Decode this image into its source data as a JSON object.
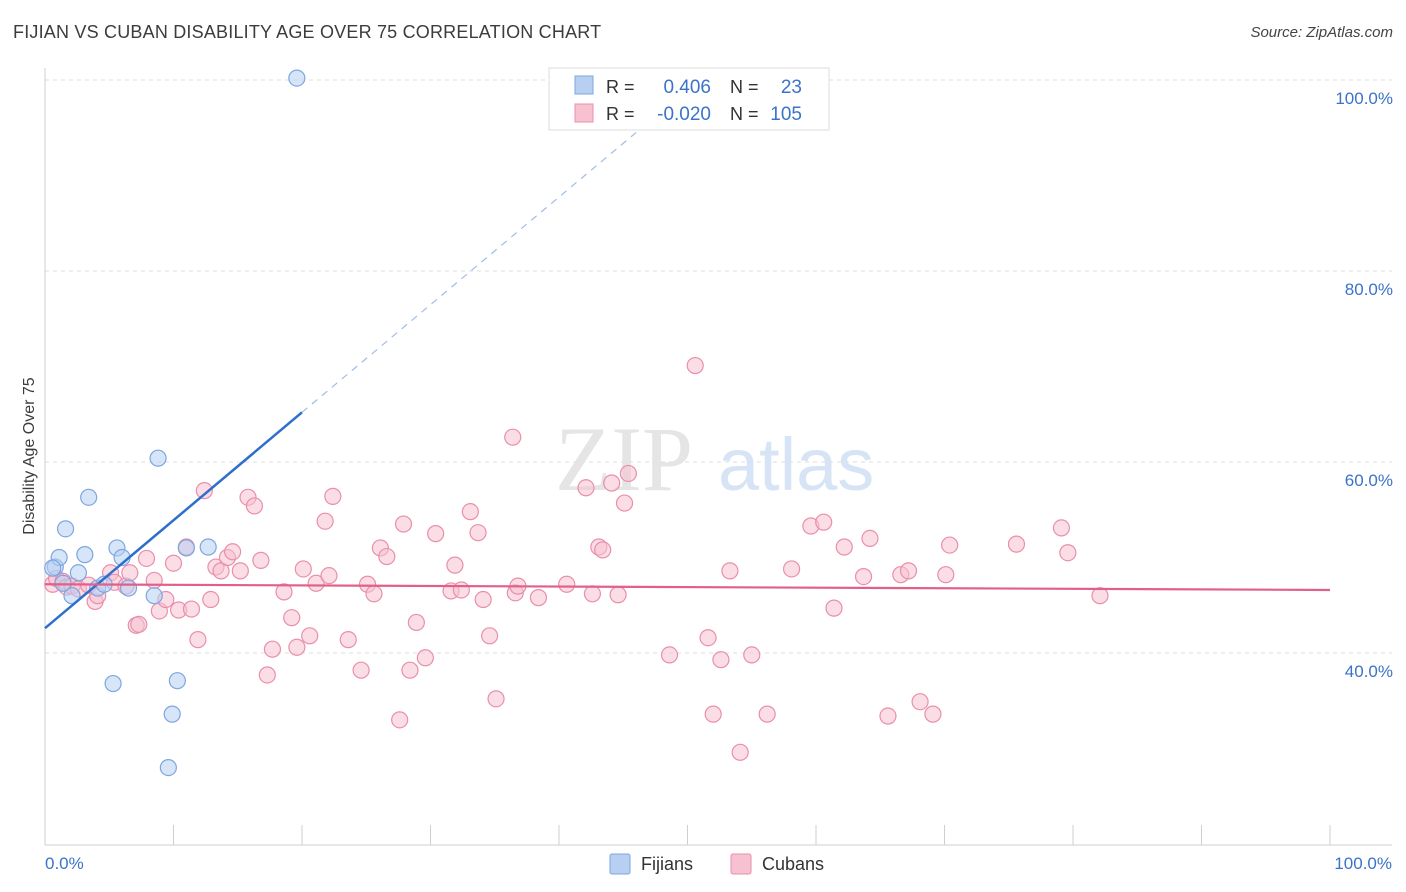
{
  "title": "FIJIAN VS CUBAN DISABILITY AGE OVER 75 CORRELATION CHART",
  "source": "Source: ZipAtlas.com",
  "watermark": {
    "zip": "ZIP",
    "atlas": "atlas"
  },
  "colors": {
    "fijian_fill": "#b7d0f2",
    "fijian_stroke": "#7ea6e0",
    "fijian_line": "#2f6fcc",
    "cuban_fill": "#f7c1d2",
    "cuban_stroke": "#e98fab",
    "cuban_line": "#e0608a",
    "axis_label": "#3a73c8",
    "grid": "#dddddd"
  },
  "legend": {
    "rows": [
      {
        "r_label": "R = ",
        "r_value": "0.406",
        "n_label": "N = ",
        "n_value": "23"
      },
      {
        "r_label": "R = ",
        "r_value": "-0.020",
        "n_label": "N = ",
        "n_value": "105"
      }
    ]
  },
  "bottom_legend": {
    "fijians": "Fijians",
    "cubans": "Cubans"
  },
  "chart_data": {
    "type": "scatter",
    "title": "FIJIAN VS CUBAN DISABILITY AGE OVER 75 CORRELATION CHART",
    "xlabel": "",
    "ylabel": "Disability Age Over 75",
    "xlim": [
      0,
      100
    ],
    "ylim": [
      20,
      103
    ],
    "x_tick_labels": [
      "0.0%",
      "100.0%"
    ],
    "y_ticks": [
      40,
      60,
      80,
      100
    ],
    "y_tick_labels": [
      "40.0%",
      "60.0%",
      "80.0%",
      "100.0%"
    ],
    "grid": true,
    "series": [
      {
        "name": "Fijians",
        "r": 0.406,
        "n": 23,
        "trend": {
          "x_start": 0,
          "y_start": 42.6,
          "x_end": 20,
          "y_end": 65.2,
          "dashed_to_x": 46,
          "dashed_to_y": 94.5
        },
        "points": [
          [
            0.8,
            49.0
          ],
          [
            1.1,
            50.0
          ],
          [
            1.6,
            53.0
          ],
          [
            3.1,
            50.3
          ],
          [
            3.4,
            56.3
          ],
          [
            2.6,
            48.4
          ],
          [
            2.1,
            46.0
          ],
          [
            4.1,
            46.8
          ],
          [
            4.6,
            47.2
          ],
          [
            5.6,
            51.0
          ],
          [
            6.0,
            50.0
          ],
          [
            6.5,
            46.8
          ],
          [
            8.5,
            46.0
          ],
          [
            8.8,
            60.4
          ],
          [
            11.0,
            51.0
          ],
          [
            12.7,
            51.1
          ],
          [
            5.3,
            36.8
          ],
          [
            10.3,
            37.1
          ],
          [
            9.9,
            33.6
          ],
          [
            9.6,
            28.0
          ],
          [
            19.6,
            100.2
          ],
          [
            0.6,
            48.9
          ],
          [
            1.4,
            47.3
          ]
        ]
      },
      {
        "name": "Cubans",
        "r": -0.02,
        "n": 105,
        "trend": {
          "x_start": 0,
          "y_start": 47.2,
          "x_end": 100,
          "y_end": 46.6
        },
        "points": [
          [
            0.6,
            47.2
          ],
          [
            0.9,
            47.8
          ],
          [
            1.4,
            47.5
          ],
          [
            1.7,
            46.9
          ],
          [
            2.1,
            47.0
          ],
          [
            2.6,
            46.7
          ],
          [
            3.4,
            47.1
          ],
          [
            3.9,
            45.4
          ],
          [
            4.1,
            46.0
          ],
          [
            5.1,
            48.4
          ],
          [
            5.4,
            47.4
          ],
          [
            6.3,
            47.0
          ],
          [
            6.6,
            48.4
          ],
          [
            7.1,
            42.9
          ],
          [
            7.3,
            43.0
          ],
          [
            7.9,
            49.9
          ],
          [
            8.5,
            47.6
          ],
          [
            8.9,
            44.4
          ],
          [
            9.4,
            45.6
          ],
          [
            10.0,
            49.4
          ],
          [
            10.4,
            44.5
          ],
          [
            11.0,
            51.1
          ],
          [
            11.4,
            44.6
          ],
          [
            11.9,
            41.4
          ],
          [
            12.4,
            57.0
          ],
          [
            12.9,
            45.6
          ],
          [
            13.3,
            49.0
          ],
          [
            13.7,
            48.6
          ],
          [
            14.2,
            50.0
          ],
          [
            14.6,
            50.6
          ],
          [
            15.2,
            48.6
          ],
          [
            15.8,
            56.3
          ],
          [
            16.3,
            55.4
          ],
          [
            16.8,
            49.7
          ],
          [
            17.3,
            37.7
          ],
          [
            17.7,
            40.4
          ],
          [
            18.6,
            46.4
          ],
          [
            19.2,
            43.7
          ],
          [
            19.6,
            40.6
          ],
          [
            20.1,
            48.8
          ],
          [
            20.6,
            41.8
          ],
          [
            21.1,
            47.3
          ],
          [
            21.8,
            53.8
          ],
          [
            22.1,
            48.1
          ],
          [
            22.4,
            56.4
          ],
          [
            23.6,
            41.4
          ],
          [
            24.6,
            38.2
          ],
          [
            25.1,
            47.2
          ],
          [
            25.6,
            46.2
          ],
          [
            26.1,
            51.0
          ],
          [
            26.6,
            50.1
          ],
          [
            27.6,
            33.0
          ],
          [
            27.9,
            53.5
          ],
          [
            28.4,
            38.2
          ],
          [
            28.9,
            43.2
          ],
          [
            29.6,
            39.5
          ],
          [
            30.4,
            52.5
          ],
          [
            31.6,
            46.5
          ],
          [
            31.9,
            49.2
          ],
          [
            32.4,
            46.6
          ],
          [
            33.1,
            54.8
          ],
          [
            33.7,
            52.6
          ],
          [
            34.1,
            45.6
          ],
          [
            34.6,
            41.8
          ],
          [
            35.1,
            35.2
          ],
          [
            36.6,
            46.3
          ],
          [
            36.8,
            47.0
          ],
          [
            36.4,
            62.6
          ],
          [
            38.4,
            45.8
          ],
          [
            40.6,
            47.2
          ],
          [
            42.1,
            57.3
          ],
          [
            42.6,
            46.2
          ],
          [
            43.1,
            51.1
          ],
          [
            43.4,
            50.8
          ],
          [
            44.1,
            57.8
          ],
          [
            44.6,
            46.1
          ],
          [
            45.1,
            55.7
          ],
          [
            45.4,
            58.8
          ],
          [
            48.6,
            39.8
          ],
          [
            51.6,
            41.6
          ],
          [
            52.0,
            33.6
          ],
          [
            52.6,
            39.3
          ],
          [
            53.3,
            48.6
          ],
          [
            55.0,
            39.8
          ],
          [
            56.2,
            33.6
          ],
          [
            58.1,
            48.8
          ],
          [
            59.6,
            53.3
          ],
          [
            60.6,
            53.7
          ],
          [
            61.4,
            44.7
          ],
          [
            62.2,
            51.1
          ],
          [
            64.2,
            52.0
          ],
          [
            63.7,
            48.0
          ],
          [
            65.6,
            33.4
          ],
          [
            66.6,
            48.2
          ],
          [
            67.2,
            48.6
          ],
          [
            68.1,
            34.9
          ],
          [
            69.1,
            33.6
          ],
          [
            70.1,
            48.2
          ],
          [
            70.4,
            51.3
          ],
          [
            75.6,
            51.4
          ],
          [
            79.1,
            53.1
          ],
          [
            79.6,
            50.5
          ],
          [
            82.1,
            46.0
          ],
          [
            50.6,
            70.1
          ],
          [
            54.1,
            29.6
          ]
        ]
      }
    ]
  }
}
